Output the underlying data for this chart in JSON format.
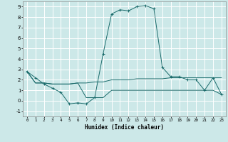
{
  "xlabel": "Humidex (Indice chaleur)",
  "ylabel": "",
  "bg_color": "#cce8e8",
  "grid_color": "#ffffff",
  "line_color": "#1a6b6b",
  "xlim": [
    -0.5,
    23.5
  ],
  "ylim": [
    -1.5,
    9.5
  ],
  "xticks": [
    0,
    1,
    2,
    3,
    4,
    5,
    6,
    7,
    8,
    9,
    10,
    11,
    12,
    13,
    14,
    15,
    16,
    17,
    18,
    19,
    20,
    21,
    22,
    23
  ],
  "yticks": [
    -1,
    0,
    1,
    2,
    3,
    4,
    5,
    6,
    7,
    8,
    9
  ],
  "line1_x": [
    0,
    1,
    2,
    3,
    4,
    5,
    6,
    7,
    8,
    9,
    10,
    11,
    12,
    13,
    14,
    15,
    16,
    17,
    18,
    19,
    20,
    21,
    22,
    23
  ],
  "line1_y": [
    2.8,
    2.2,
    1.6,
    1.2,
    0.8,
    -0.3,
    -0.2,
    -0.3,
    0.3,
    4.5,
    8.3,
    8.7,
    8.6,
    9.0,
    9.1,
    8.8,
    3.2,
    2.3,
    2.3,
    2.0,
    2.0,
    1.0,
    2.2,
    0.6
  ],
  "line2_x": [
    0,
    1,
    2,
    3,
    4,
    5,
    6,
    7,
    8,
    9,
    10,
    11,
    12,
    13,
    14,
    15,
    16,
    17,
    18,
    19,
    20,
    21,
    22,
    23
  ],
  "line2_y": [
    2.8,
    1.7,
    1.7,
    1.6,
    1.6,
    1.6,
    1.7,
    1.7,
    1.8,
    1.8,
    2.0,
    2.0,
    2.0,
    2.1,
    2.1,
    2.1,
    2.1,
    2.2,
    2.2,
    2.2,
    2.2,
    2.2,
    2.2,
    2.2
  ],
  "line3_x": [
    0,
    1,
    2,
    3,
    4,
    5,
    6,
    7,
    8,
    9,
    10,
    11,
    12,
    13,
    14,
    15,
    16,
    17,
    18,
    19,
    20,
    21,
    22,
    23
  ],
  "line3_y": [
    2.8,
    1.7,
    1.7,
    1.6,
    1.6,
    1.6,
    1.7,
    0.3,
    0.3,
    0.3,
    1.0,
    1.0,
    1.0,
    1.0,
    1.0,
    1.0,
    1.0,
    1.0,
    1.0,
    1.0,
    1.0,
    1.0,
    1.0,
    0.6
  ],
  "figsize": [
    3.2,
    2.0
  ],
  "dpi": 100
}
